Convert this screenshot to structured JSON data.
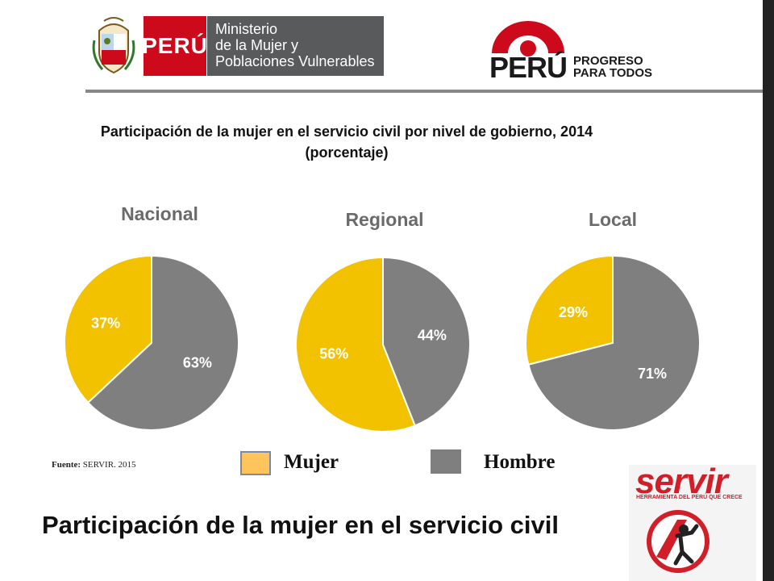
{
  "header": {
    "peru_label": "PERÚ",
    "ministry_lines": [
      "Ministerio",
      "de la Mujer y",
      "Poblaciones Vulnerables"
    ],
    "brand_peru": "PERÚ",
    "brand_slogan_1": "PROGRESO",
    "brand_slogan_2": "PARA TODOS"
  },
  "chart_data": {
    "type": "pie",
    "title": "Participación de la mujer en el servicio civil por nivel de gobierno, 2014",
    "subtitle": "(porcentaje)",
    "series_names": [
      "Mujer",
      "Hombre"
    ],
    "colors": {
      "Mujer": "#f2c200",
      "Hombre": "#7f7f7f",
      "legend_mujer": "#ffc45c"
    },
    "pies": [
      {
        "name": "Nacional",
        "values": [
          37,
          63
        ],
        "labels": [
          "37%",
          "63%"
        ]
      },
      {
        "name": "Regional",
        "values": [
          56,
          44
        ],
        "labels": [
          "56%",
          "44%"
        ]
      },
      {
        "name": "Local",
        "values": [
          29,
          71
        ],
        "labels": [
          "29%",
          "71%"
        ]
      }
    ],
    "legend_placement": "bottom"
  },
  "source": {
    "label": "Fuente:",
    "text": "SERVIR. 2015"
  },
  "bottom_title": "Participación de la mujer en el servicio civil",
  "servir_logo": {
    "word": "servir",
    "tagline": "HERRAMIENTA DEL PERÚ QUE CRECE"
  }
}
